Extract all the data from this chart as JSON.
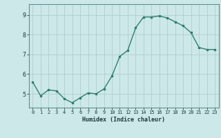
{
  "x": [
    0,
    1,
    2,
    3,
    4,
    5,
    6,
    7,
    8,
    9,
    10,
    11,
    12,
    13,
    14,
    15,
    16,
    17,
    18,
    19,
    20,
    21,
    22,
    23
  ],
  "y": [
    5.6,
    4.9,
    5.2,
    5.15,
    4.75,
    4.55,
    4.8,
    5.05,
    5.0,
    5.25,
    5.9,
    6.9,
    7.2,
    8.35,
    8.9,
    8.9,
    8.95,
    8.85,
    8.65,
    8.45,
    8.1,
    7.35,
    7.25,
    7.25
  ],
  "title": "",
  "xlabel": "Humidex (Indice chaleur)",
  "xlim": [
    -0.5,
    23.5
  ],
  "ylim": [
    4.3,
    9.55
  ],
  "yticks": [
    5,
    6,
    7,
    8,
    9
  ],
  "xticks": [
    0,
    1,
    2,
    3,
    4,
    5,
    6,
    7,
    8,
    9,
    10,
    11,
    12,
    13,
    14,
    15,
    16,
    17,
    18,
    19,
    20,
    21,
    22,
    23
  ],
  "line_color": "#2e7d72",
  "bg_color": "#cde8e8",
  "grid_color": "#aecece",
  "border_color": "#5a9090",
  "label_color": "#1a3a3a",
  "font_family": "monospace"
}
